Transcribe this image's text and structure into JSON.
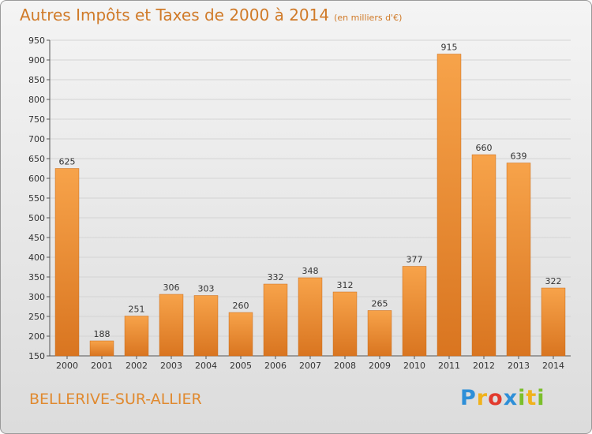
{
  "header": {
    "title": "Autres Impôts et Taxes de 2000 à 2014",
    "unit": "(en milliers d'€)"
  },
  "footer": {
    "place": "BELLERIVE-SUR-ALLIER",
    "logo": [
      "P",
      "r",
      "o",
      "x",
      "i",
      "t",
      "i"
    ],
    "logo_colors": [
      "#2e8fd8",
      "#f0b21c",
      "#e23b2e",
      "#2e8fd8",
      "#7cbf2b",
      "#f0b21c",
      "#7cbf2b"
    ]
  },
  "chart_data": {
    "type": "bar",
    "title": "Autres Impôts et Taxes de 2000 à 2014",
    "xlabel": "",
    "ylabel": "",
    "categories": [
      "2000",
      "2001",
      "2002",
      "2003",
      "2004",
      "2005",
      "2006",
      "2007",
      "2008",
      "2009",
      "2010",
      "2011",
      "2012",
      "2013",
      "2014"
    ],
    "values": [
      625,
      188,
      251,
      306,
      303,
      260,
      332,
      348,
      312,
      265,
      377,
      915,
      660,
      639,
      322
    ],
    "ylim": [
      150,
      950
    ],
    "yticks": [
      "150",
      "200",
      "250",
      "300",
      "350",
      "400",
      "450",
      "500",
      "550",
      "600",
      "650",
      "700",
      "750",
      "800",
      "850",
      "900",
      "950"
    ],
    "grid": true,
    "bar_color": "#ee9435",
    "bar_color_light": "#f7a34a",
    "bar_color_dark": "#d97520",
    "grid_color": "#d4d4d4"
  }
}
